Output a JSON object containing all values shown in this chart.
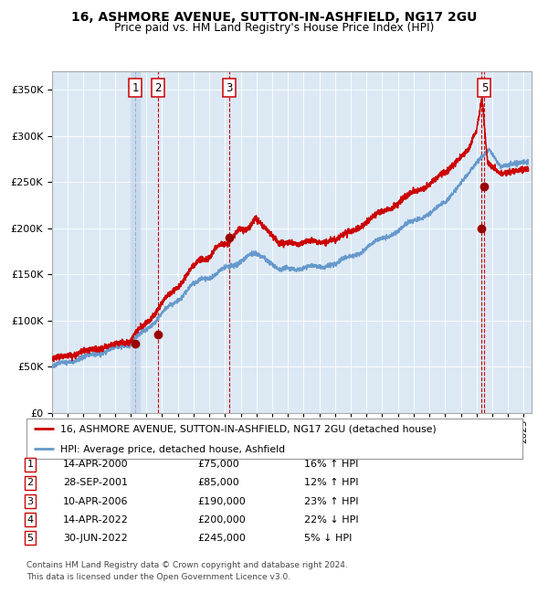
{
  "title": "16, ASHMORE AVENUE, SUTTON-IN-ASHFIELD, NG17 2GU",
  "subtitle": "Price paid vs. HM Land Registry's House Price Index (HPI)",
  "footer": "Contains HM Land Registry data © Crown copyright and database right 2024.\nThis data is licensed under the Open Government Licence v3.0.",
  "legend_line1": "16, ASHMORE AVENUE, SUTTON-IN-ASHFIELD, NG17 2GU (detached house)",
  "legend_line2": "HPI: Average price, detached house, Ashfield",
  "transactions": [
    {
      "num": 1,
      "date": 2000.29,
      "price": 75000,
      "label": "14-APR-2000",
      "pct": "16%",
      "dir": "↑"
    },
    {
      "num": 2,
      "date": 2001.75,
      "price": 85000,
      "label": "28-SEP-2001",
      "pct": "12%",
      "dir": "↑"
    },
    {
      "num": 3,
      "date": 2006.28,
      "price": 190000,
      "label": "10-APR-2006",
      "pct": "23%",
      "dir": "↑"
    },
    {
      "num": 4,
      "date": 2022.29,
      "price": 200000,
      "label": "14-APR-2022",
      "pct": "22%",
      "dir": "↓"
    },
    {
      "num": 5,
      "date": 2022.5,
      "price": 245000,
      "label": "30-JUN-2022",
      "pct": "5%",
      "dir": "↓"
    }
  ],
  "table_data": [
    [
      "1",
      "14-APR-2000",
      "£75,000",
      "16% ↑ HPI"
    ],
    [
      "2",
      "28-SEP-2001",
      "£85,000",
      "12% ↑ HPI"
    ],
    [
      "3",
      "10-APR-2006",
      "£190,000",
      "23% ↑ HPI"
    ],
    [
      "4",
      "14-APR-2022",
      "£200,000",
      "22% ↓ HPI"
    ],
    [
      "5",
      "30-JUN-2022",
      "£245,000",
      "5% ↓ HPI"
    ]
  ],
  "ylim": [
    0,
    370000
  ],
  "xlim_start": 1995.0,
  "xlim_end": 2025.5,
  "bg_color": "#dce9f5",
  "grid_color": "#ffffff",
  "red_line_color": "#cc0000",
  "blue_line_color": "#6699cc",
  "dot_color": "#990000",
  "vline_color_red": "#cc0000",
  "vline_color_blue": "#aaaacc"
}
